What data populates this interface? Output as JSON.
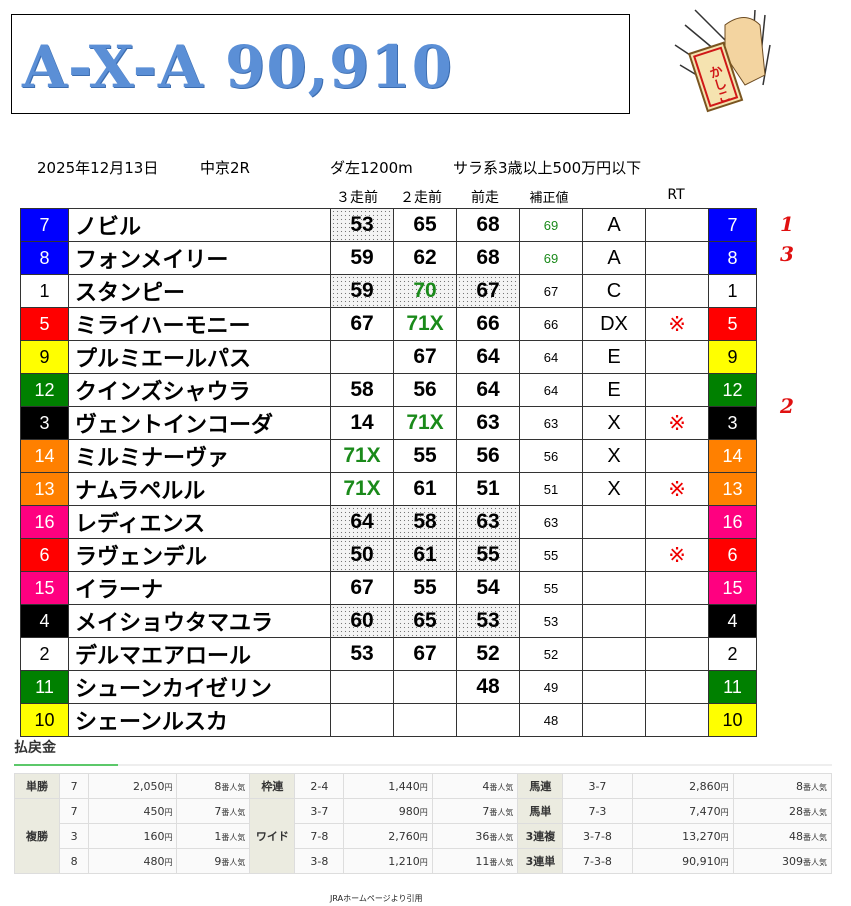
{
  "title": "A-X-A 90,910",
  "logo_text": "かしこ",
  "race": {
    "date": "2025年12月13日",
    "venue": "中京2R",
    "course": "ダ左1200m",
    "class": "サラ系3歳以上500万円以下"
  },
  "headers": {
    "r3": "３走前",
    "r2": "２走前",
    "r1": "前走",
    "adj": "補正値",
    "rt": "RT"
  },
  "colors": {
    "waku1": "#ffffff",
    "waku2": "#ffffff",
    "waku3": "#000000",
    "waku4": "#000000",
    "waku5": "#ff0000",
    "waku6": "#ff0000",
    "waku7": "#0000ff",
    "waku8": "#0000ff",
    "waku9": "#ffff00",
    "waku10": "#ffff00",
    "waku11": "#008000",
    "waku12": "#008000",
    "waku13": "#ff8000",
    "waku14": "#ff8000",
    "waku15": "#ff0080",
    "waku16": "#ff0080",
    "highlight": "#1a8a1a",
    "mark": "#e01010"
  },
  "horses": [
    {
      "no": "7",
      "name": "ノビル",
      "r3": "53",
      "r2": "65",
      "r1": "68",
      "adj": "69",
      "grade": "A",
      "rt": "",
      "mark": "1",
      "shade": [
        1,
        0,
        0
      ],
      "green": [
        0,
        0,
        0
      ],
      "adjgreen": true
    },
    {
      "no": "8",
      "name": "フォンメイリー",
      "r3": "59",
      "r2": "62",
      "r1": "68",
      "adj": "69",
      "grade": "A",
      "rt": "",
      "mark": "3",
      "shade": [
        0,
        0,
        0
      ],
      "green": [
        0,
        0,
        0
      ],
      "adjgreen": true
    },
    {
      "no": "1",
      "name": "スタンピー",
      "r3": "59",
      "r2": "70",
      "r1": "67",
      "adj": "67",
      "grade": "C",
      "rt": "",
      "mark": "",
      "shade": [
        1,
        1,
        1
      ],
      "green": [
        0,
        1,
        0
      ]
    },
    {
      "no": "5",
      "name": "ミライハーモニー",
      "r3": "67",
      "r2": "71X",
      "r1": "66",
      "adj": "66",
      "grade": "DX",
      "rt": "※",
      "mark": "",
      "shade": [
        0,
        0,
        0
      ],
      "green": [
        0,
        1,
        0
      ]
    },
    {
      "no": "9",
      "name": "プルミエールパス",
      "r3": "",
      "r2": "67",
      "r1": "64",
      "adj": "64",
      "grade": "E",
      "rt": "",
      "mark": "",
      "shade": [
        0,
        0,
        0
      ],
      "green": [
        0,
        0,
        0
      ]
    },
    {
      "no": "12",
      "name": "クインズシャウラ",
      "r3": "58",
      "r2": "56",
      "r1": "64",
      "adj": "64",
      "grade": "E",
      "rt": "",
      "mark": "",
      "shade": [
        0,
        0,
        0
      ],
      "green": [
        0,
        0,
        0
      ]
    },
    {
      "no": "3",
      "name": "ヴェントインコーダ",
      "r3": "14",
      "r2": "71X",
      "r1": "63",
      "adj": "63",
      "grade": "X",
      "rt": "※",
      "mark": "2",
      "shade": [
        0,
        0,
        0
      ],
      "green": [
        0,
        1,
        0
      ]
    },
    {
      "no": "14",
      "name": "ミルミナーヴァ",
      "r3": "71X",
      "r2": "55",
      "r1": "56",
      "adj": "56",
      "grade": "X",
      "rt": "",
      "mark": "",
      "shade": [
        0,
        0,
        0
      ],
      "green": [
        1,
        0,
        0
      ]
    },
    {
      "no": "13",
      "name": "ナムラペルル",
      "r3": "71X",
      "r2": "61",
      "r1": "51",
      "adj": "51",
      "grade": "X",
      "rt": "※",
      "mark": "",
      "shade": [
        0,
        0,
        0
      ],
      "green": [
        1,
        0,
        0
      ]
    },
    {
      "no": "16",
      "name": "レディエンス",
      "r3": "64",
      "r2": "58",
      "r1": "63",
      "adj": "63",
      "grade": "",
      "rt": "",
      "mark": "",
      "shade": [
        1,
        1,
        1
      ],
      "green": [
        0,
        0,
        0
      ]
    },
    {
      "no": "6",
      "name": "ラヴェンデル",
      "r3": "50",
      "r2": "61",
      "r1": "55",
      "adj": "55",
      "grade": "",
      "rt": "※",
      "mark": "",
      "shade": [
        1,
        1,
        1
      ],
      "green": [
        0,
        0,
        0
      ]
    },
    {
      "no": "15",
      "name": "イラーナ",
      "r3": "67",
      "r2": "55",
      "r1": "54",
      "adj": "55",
      "grade": "",
      "rt": "",
      "mark": "",
      "shade": [
        0,
        0,
        0
      ],
      "green": [
        0,
        0,
        0
      ]
    },
    {
      "no": "4",
      "name": "メイショウタマユラ",
      "r3": "60",
      "r2": "65",
      "r1": "53",
      "adj": "53",
      "grade": "",
      "rt": "",
      "mark": "",
      "shade": [
        1,
        1,
        1
      ],
      "green": [
        0,
        0,
        0
      ]
    },
    {
      "no": "2",
      "name": "デルマエアロール",
      "r3": "53",
      "r2": "67",
      "r1": "52",
      "adj": "52",
      "grade": "",
      "rt": "",
      "mark": "",
      "shade": [
        0,
        0,
        0
      ],
      "green": [
        0,
        0,
        0
      ]
    },
    {
      "no": "11",
      "name": "シューンカイゼリン",
      "r3": "",
      "r2": "",
      "r1": "48",
      "adj": "49",
      "grade": "",
      "rt": "",
      "mark": "",
      "shade": [
        0,
        0,
        0
      ],
      "green": [
        0,
        0,
        0
      ]
    },
    {
      "no": "10",
      "name": "シェーンルスカ",
      "r3": "",
      "r2": "",
      "r1": "",
      "adj": "48",
      "grade": "",
      "rt": "",
      "mark": "",
      "shade": [
        0,
        0,
        0
      ],
      "green": [
        0,
        0,
        0
      ]
    }
  ],
  "payout": {
    "heading": "払戻金",
    "yen": "円",
    "pop_suffix": "番人気",
    "win": {
      "label": "単勝",
      "combo": "7",
      "amount": "2,050",
      "pop": "8"
    },
    "place": {
      "label": "複勝",
      "rows": [
        {
          "combo": "7",
          "amount": "450",
          "pop": "7"
        },
        {
          "combo": "3",
          "amount": "160",
          "pop": "1"
        },
        {
          "combo": "8",
          "amount": "480",
          "pop": "9"
        }
      ]
    },
    "bracket": {
      "label": "枠連",
      "combo": "2-4",
      "amount": "1,440",
      "pop": "4"
    },
    "wide": {
      "label": "ワイド",
      "rows": [
        {
          "combo": "3-7",
          "amount": "980",
          "pop": "7"
        },
        {
          "combo": "7-8",
          "amount": "2,760",
          "pop": "36"
        },
        {
          "combo": "3-8",
          "amount": "1,210",
          "pop": "11"
        }
      ]
    },
    "right": [
      {
        "label": "馬連",
        "combo": "3-7",
        "amount": "2,860",
        "pop": "8"
      },
      {
        "label": "馬単",
        "combo": "7-3",
        "amount": "7,470",
        "pop": "28"
      },
      {
        "label": "3連複",
        "combo": "3-7-8",
        "amount": "13,270",
        "pop": "48"
      },
      {
        "label": "3連単",
        "combo": "7-3-8",
        "amount": "90,910",
        "pop": "309"
      }
    ]
  },
  "footer": "JRAホームページより引用"
}
